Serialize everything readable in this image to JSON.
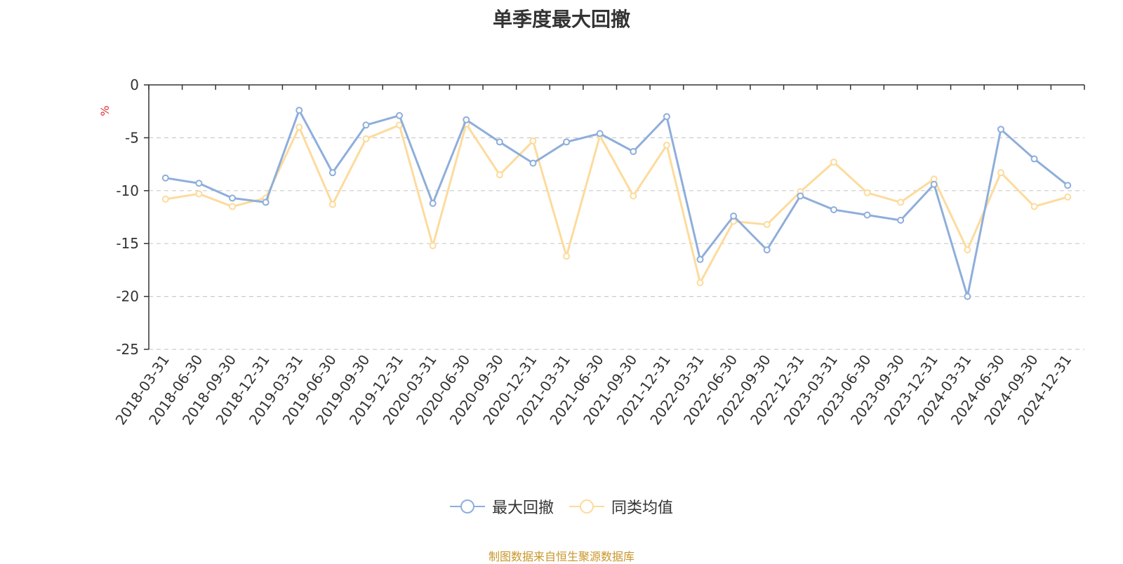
{
  "chart_data": {
    "type": "line",
    "title": "单季度最大回撤",
    "ylabel": "%",
    "xlabel": "",
    "ylim": [
      -25,
      0
    ],
    "yticks": [
      0,
      -5,
      -10,
      -15,
      -20,
      -25
    ],
    "ytick_labels": [
      "0",
      "-5",
      "-10",
      "-15",
      "-20",
      "-25"
    ],
    "grid": true,
    "legend_position": "bottom-center",
    "categories": [
      "2018-03-31",
      "2018-06-30",
      "2018-09-30",
      "2018-12-31",
      "2019-03-31",
      "2019-06-30",
      "2019-09-30",
      "2019-12-31",
      "2020-03-31",
      "2020-06-30",
      "2020-09-30",
      "2020-12-31",
      "2021-03-31",
      "2021-06-30",
      "2021-09-30",
      "2021-12-31",
      "2022-03-31",
      "2022-06-30",
      "2022-09-30",
      "2022-12-31",
      "2023-03-31",
      "2023-06-30",
      "2023-09-30",
      "2023-12-31",
      "2024-03-31",
      "2024-06-30",
      "2024-09-30",
      "2024-12-31"
    ],
    "series": [
      {
        "name": "最大回撤",
        "color": "#8eaedb",
        "values": [
          -8.8,
          -9.3,
          -10.7,
          -11.1,
          -2.4,
          -8.3,
          -3.8,
          -2.9,
          -11.2,
          -3.3,
          -5.4,
          -7.4,
          -5.4,
          -4.6,
          -6.3,
          -3.0,
          -16.5,
          -12.4,
          -15.6,
          -10.5,
          -11.8,
          -12.3,
          -12.8,
          -9.4,
          -20.0,
          -4.2,
          -7.0,
          -9.5
        ]
      },
      {
        "name": "同类均值",
        "color": "#fddb9c",
        "values": [
          -10.8,
          -10.3,
          -11.5,
          -10.7,
          -4.0,
          -11.3,
          -5.1,
          -3.8,
          -15.2,
          -3.7,
          -8.5,
          -5.3,
          -16.2,
          -4.8,
          -10.5,
          -5.7,
          -18.7,
          -12.9,
          -13.2,
          -10.1,
          -7.3,
          -10.2,
          -11.1,
          -8.9,
          -15.6,
          -8.3,
          -11.5,
          -10.6
        ]
      }
    ]
  },
  "footer": "制图数据来自恒生聚源数据库"
}
